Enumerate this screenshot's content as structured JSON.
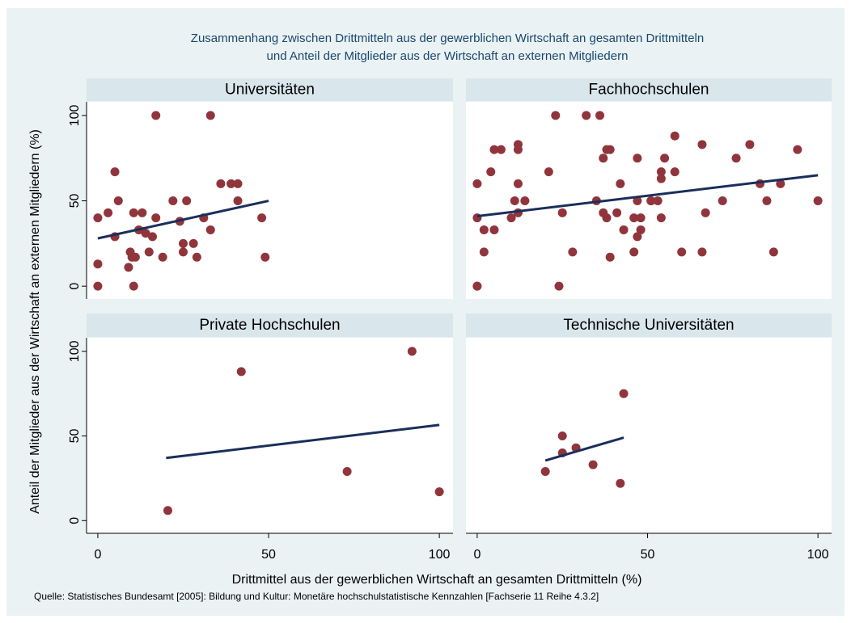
{
  "title": [
    "Zusammenhang zwischen Drittmitteln aus der gewerblichen Wirtschaft an gesamten Drittmitteln",
    "und Anteil der Mitglieder aus der Wirtschaft an externen Mitgliedern"
  ],
  "xlabel": "Drittmittel aus der gewerblichen Wirtschaft an gesamten Drittmitteln (%)",
  "ylabel": "Anteil der Mitglieder aus der Wirtschaft an externen Mitgliedern (%)",
  "note": "Quelle: Statistisches Bundesamt [2005]: Bildung und Kultur: Monetäre hochschulstatistische Kennzahlen [Fachserie 11 Reihe 4.3.2]",
  "chart_data": [
    {
      "type": "scatter",
      "title": "Universitäten",
      "color": "#90353b",
      "fit_color": "#1a2e5c",
      "xlim": [
        -3.3,
        104
      ],
      "ylim": [
        -7.5,
        108
      ],
      "yticks": [
        0,
        50,
        100
      ],
      "x": [
        0,
        0,
        0,
        3,
        5,
        5,
        6,
        9,
        9.5,
        10,
        10.5,
        10.5,
        11,
        12,
        13,
        14,
        15,
        16,
        17,
        17,
        19,
        22,
        24,
        25,
        25,
        26,
        28,
        29,
        31,
        33,
        33,
        36,
        39,
        41,
        41,
        48,
        49
      ],
      "values": [
        40,
        13,
        0,
        43,
        67,
        29,
        50,
        11,
        20,
        17,
        43,
        0,
        17,
        33,
        43,
        31,
        20,
        29,
        100,
        40,
        17,
        50,
        38,
        25,
        20,
        50,
        25,
        17,
        40,
        100,
        33,
        60,
        60,
        60,
        50,
        40,
        17
      ],
      "fit": {
        "x": [
          0,
          50
        ],
        "values": [
          28,
          50
        ]
      }
    },
    {
      "type": "scatter",
      "title": "Fachhochschulen",
      "color": "#90353b",
      "fit_color": "#1a2e5c",
      "xlim": [
        -3.3,
        104
      ],
      "ylim": [
        -7.5,
        108
      ],
      "x": [
        0,
        0,
        0,
        0,
        2,
        2,
        4,
        5,
        5,
        7,
        10,
        11,
        12,
        12,
        12,
        12,
        14,
        21,
        23,
        24,
        25,
        28,
        32,
        35,
        36,
        37,
        37,
        38,
        38,
        39,
        39,
        41,
        42,
        43,
        46,
        46,
        47,
        47,
        47,
        48,
        48,
        51,
        51,
        53,
        54,
        54,
        54,
        55,
        58,
        58,
        60,
        66,
        66,
        67,
        72,
        76,
        80,
        83,
        85,
        87,
        89,
        94,
        100
      ],
      "values": [
        60,
        40,
        0,
        0,
        33,
        20,
        67,
        80,
        33,
        80,
        40,
        50,
        60,
        43,
        83,
        80,
        50,
        67,
        100,
        0,
        43,
        20,
        100,
        50,
        100,
        75,
        43,
        80,
        40,
        17,
        80,
        43,
        60,
        33,
        40,
        20,
        75,
        50,
        29,
        33,
        40,
        50,
        50,
        50,
        63,
        67,
        40,
        75,
        88,
        67,
        20,
        83,
        20,
        43,
        50,
        75,
        83,
        60,
        50,
        20,
        60,
        80,
        50
      ],
      "fit": {
        "x": [
          0,
          100
        ],
        "values": [
          41,
          65
        ]
      }
    },
    {
      "type": "scatter",
      "title": "Private Hochschulen",
      "color": "#90353b",
      "fit_color": "#1a2e5c",
      "xlim": [
        -3.3,
        104
      ],
      "ylim": [
        -7.5,
        108
      ],
      "xticks": [
        0,
        50,
        100
      ],
      "yticks": [
        0,
        50,
        100
      ],
      "x": [
        42,
        92,
        73,
        100,
        20.5
      ],
      "values": [
        88,
        100,
        29,
        17,
        6
      ],
      "fit": {
        "x": [
          20,
          100
        ],
        "values": [
          37,
          56.5
        ]
      }
    },
    {
      "type": "scatter",
      "title": "Technische Universitäten",
      "color": "#90353b",
      "fit_color": "#1a2e5c",
      "xlim": [
        -3.3,
        104
      ],
      "ylim": [
        -7.5,
        108
      ],
      "xticks": [
        0,
        50,
        100
      ],
      "x": [
        20,
        25,
        25,
        29,
        34,
        42,
        43
      ],
      "values": [
        29,
        50,
        40,
        43,
        33,
        22,
        75
      ],
      "fit": {
        "x": [
          20,
          43
        ],
        "values": [
          35.5,
          49
        ]
      }
    }
  ]
}
